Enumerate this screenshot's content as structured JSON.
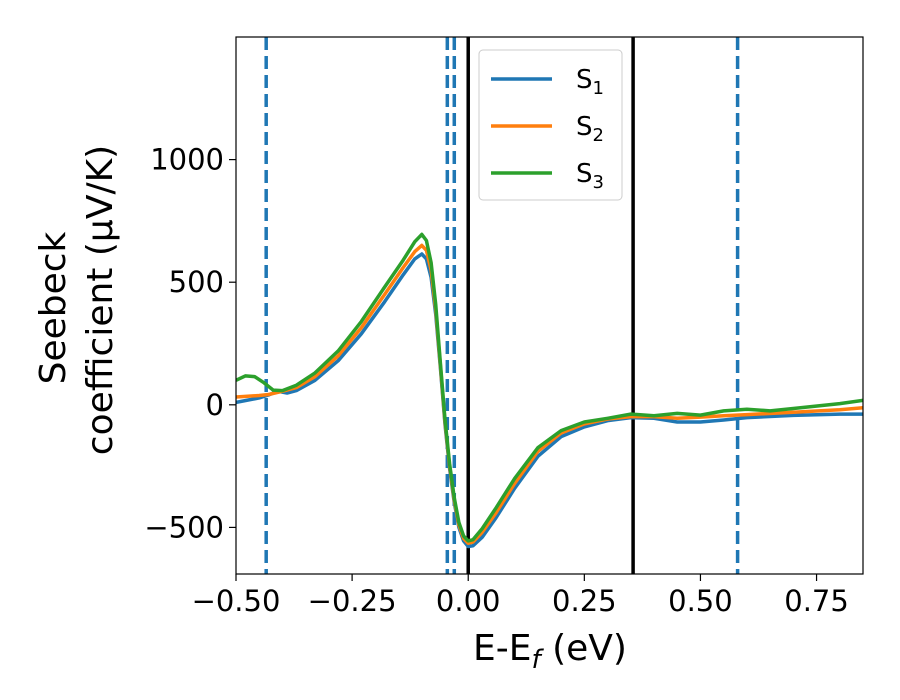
{
  "chart_data": {
    "type": "line",
    "xlabel": "E-E",
    "xlabel_sub": "f",
    "xlabel_unit": " (eV)",
    "ylabel_line1": "Seebeck",
    "ylabel_line2": "coefficient  (μV/K)",
    "xlim": [
      -0.5,
      0.85
    ],
    "ylim": [
      -690,
      1500
    ],
    "x_ticks": [
      -0.5,
      -0.25,
      0.0,
      0.25,
      0.5,
      0.75
    ],
    "x_tick_labels": [
      "−0.50",
      "−0.25",
      "0.00",
      "0.25",
      "0.50",
      "0.75"
    ],
    "y_ticks": [
      -500,
      0,
      500,
      1000
    ],
    "y_tick_labels": [
      "−500",
      "0",
      "500",
      "1000"
    ],
    "grid": false,
    "legend_position": "top-center",
    "series": [
      {
        "name": "S",
        "name_sub": "1",
        "color": "#1f77b4",
        "points": [
          [
            -0.5,
            10
          ],
          [
            -0.45,
            28
          ],
          [
            -0.43,
            40
          ],
          [
            -0.41,
            55
          ],
          [
            -0.39,
            48
          ],
          [
            -0.37,
            58
          ],
          [
            -0.33,
            100
          ],
          [
            -0.28,
            180
          ],
          [
            -0.23,
            290
          ],
          [
            -0.18,
            420
          ],
          [
            -0.14,
            530
          ],
          [
            -0.115,
            595
          ],
          [
            -0.1,
            615
          ],
          [
            -0.09,
            595
          ],
          [
            -0.08,
            520
          ],
          [
            -0.07,
            370
          ],
          [
            -0.06,
            150
          ],
          [
            -0.05,
            -80
          ],
          [
            -0.04,
            -260
          ],
          [
            -0.03,
            -400
          ],
          [
            -0.02,
            -500
          ],
          [
            -0.01,
            -555
          ],
          [
            0.0,
            -578
          ],
          [
            0.01,
            -575
          ],
          [
            0.03,
            -540
          ],
          [
            0.06,
            -460
          ],
          [
            0.1,
            -340
          ],
          [
            0.15,
            -210
          ],
          [
            0.2,
            -130
          ],
          [
            0.25,
            -90
          ],
          [
            0.3,
            -65
          ],
          [
            0.35,
            -52
          ],
          [
            0.4,
            -55
          ],
          [
            0.45,
            -70
          ],
          [
            0.5,
            -70
          ],
          [
            0.55,
            -62
          ],
          [
            0.6,
            -52
          ],
          [
            0.7,
            -43
          ],
          [
            0.8,
            -38
          ],
          [
            0.85,
            -38
          ]
        ]
      },
      {
        "name": "S",
        "name_sub": "2",
        "color": "#ff7f0e",
        "points": [
          [
            -0.5,
            32
          ],
          [
            -0.45,
            38
          ],
          [
            -0.43,
            42
          ],
          [
            -0.4,
            55
          ],
          [
            -0.37,
            70
          ],
          [
            -0.33,
            115
          ],
          [
            -0.28,
            200
          ],
          [
            -0.23,
            315
          ],
          [
            -0.18,
            450
          ],
          [
            -0.14,
            560
          ],
          [
            -0.115,
            625
          ],
          [
            -0.1,
            650
          ],
          [
            -0.09,
            630
          ],
          [
            -0.08,
            550
          ],
          [
            -0.07,
            390
          ],
          [
            -0.06,
            160
          ],
          [
            -0.05,
            -70
          ],
          [
            -0.04,
            -250
          ],
          [
            -0.03,
            -390
          ],
          [
            -0.02,
            -490
          ],
          [
            -0.01,
            -545
          ],
          [
            0.0,
            -565
          ],
          [
            0.01,
            -560
          ],
          [
            0.03,
            -520
          ],
          [
            0.06,
            -440
          ],
          [
            0.1,
            -320
          ],
          [
            0.15,
            -190
          ],
          [
            0.2,
            -115
          ],
          [
            0.25,
            -78
          ],
          [
            0.3,
            -58
          ],
          [
            0.35,
            -48
          ],
          [
            0.4,
            -48
          ],
          [
            0.45,
            -55
          ],
          [
            0.5,
            -50
          ],
          [
            0.55,
            -45
          ],
          [
            0.6,
            -40
          ],
          [
            0.7,
            -30
          ],
          [
            0.8,
            -20
          ],
          [
            0.85,
            -12
          ]
        ]
      },
      {
        "name": "S",
        "name_sub": "3",
        "color": "#2ca02c",
        "points": [
          [
            -0.5,
            100
          ],
          [
            -0.48,
            118
          ],
          [
            -0.46,
            115
          ],
          [
            -0.44,
            90
          ],
          [
            -0.42,
            60
          ],
          [
            -0.4,
            58
          ],
          [
            -0.37,
            80
          ],
          [
            -0.33,
            130
          ],
          [
            -0.28,
            220
          ],
          [
            -0.23,
            340
          ],
          [
            -0.18,
            480
          ],
          [
            -0.14,
            590
          ],
          [
            -0.115,
            665
          ],
          [
            -0.1,
            695
          ],
          [
            -0.09,
            670
          ],
          [
            -0.08,
            580
          ],
          [
            -0.07,
            410
          ],
          [
            -0.06,
            170
          ],
          [
            -0.05,
            -60
          ],
          [
            -0.04,
            -240
          ],
          [
            -0.03,
            -380
          ],
          [
            -0.02,
            -480
          ],
          [
            -0.01,
            -535
          ],
          [
            0.0,
            -555
          ],
          [
            0.01,
            -550
          ],
          [
            0.03,
            -505
          ],
          [
            0.06,
            -420
          ],
          [
            0.1,
            -300
          ],
          [
            0.15,
            -175
          ],
          [
            0.2,
            -105
          ],
          [
            0.25,
            -70
          ],
          [
            0.3,
            -55
          ],
          [
            0.35,
            -38
          ],
          [
            0.4,
            -45
          ],
          [
            0.45,
            -35
          ],
          [
            0.5,
            -42
          ],
          [
            0.55,
            -25
          ],
          [
            0.6,
            -18
          ],
          [
            0.65,
            -25
          ],
          [
            0.7,
            -15
          ],
          [
            0.8,
            5
          ],
          [
            0.85,
            18
          ]
        ]
      }
    ],
    "vlines": [
      {
        "x": -0.435,
        "style": "dashed",
        "color": "#1f77b4"
      },
      {
        "x": -0.045,
        "style": "dashed",
        "color": "#1f77b4"
      },
      {
        "x": -0.03,
        "style": "dashed",
        "color": "#1f77b4"
      },
      {
        "x": 0.0,
        "style": "solid",
        "color": "#000000"
      },
      {
        "x": 0.355,
        "style": "solid",
        "color": "#000000"
      },
      {
        "x": 0.58,
        "style": "dashed",
        "color": "#1f77b4"
      }
    ]
  }
}
